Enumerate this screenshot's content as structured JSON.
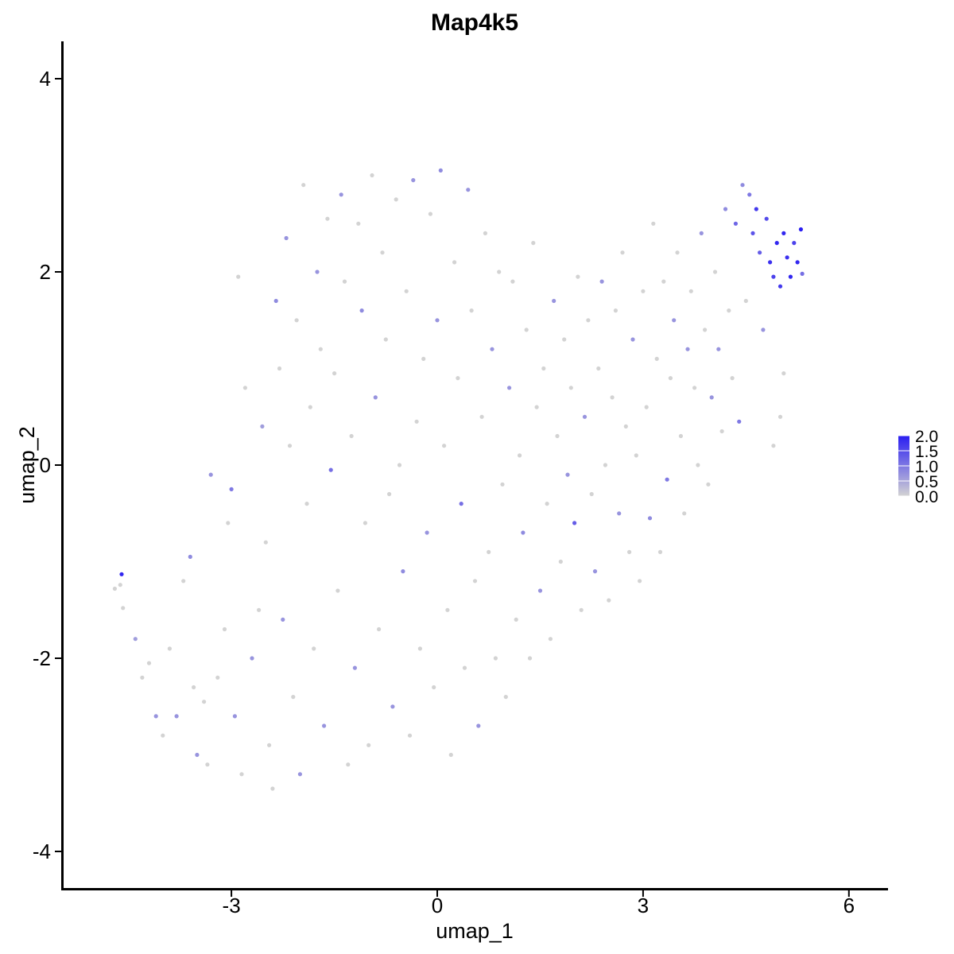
{
  "chart_data": {
    "type": "scatter",
    "title": "Map4k5",
    "xlabel": "umap_1",
    "ylabel": "umap_2",
    "xlim": [
      -5.5,
      6.5
    ],
    "ylim": [
      -4.4,
      4.4
    ],
    "x_ticks": [
      -3,
      0,
      3,
      6
    ],
    "x_tick_labels": [
      "-3",
      "0",
      "3",
      "6"
    ],
    "y_ticks": [
      -4,
      -2,
      0,
      2,
      4
    ],
    "y_tick_labels": [
      "-4",
      "-2",
      "0",
      "2",
      "4"
    ],
    "grid": false,
    "legend": {
      "placement": "right",
      "type": "colorbar",
      "range": [
        0,
        2.0
      ],
      "ticks": [
        0,
        0.5,
        1.0,
        1.5,
        2.0
      ],
      "tick_labels": [
        "0.0",
        "0.5",
        "1.0",
        "1.5",
        "2.0"
      ],
      "low_color": "#d3d3d3",
      "high_color": "#2a1ef2"
    },
    "points": [
      [
        -4.6,
        -1.13,
        1.9
      ],
      [
        -4.7,
        -1.28,
        0.0
      ],
      [
        -4.62,
        -1.24,
        0.0
      ],
      [
        -4.58,
        -1.48,
        0.0
      ],
      [
        -4.4,
        -1.8,
        0.6
      ],
      [
        -4.3,
        -2.2,
        0.0
      ],
      [
        -4.2,
        -2.05,
        0.0
      ],
      [
        -4.1,
        -2.6,
        0.7
      ],
      [
        -4.0,
        -2.8,
        0.0
      ],
      [
        -3.9,
        -1.9,
        0.0
      ],
      [
        -3.8,
        -2.6,
        0.7
      ],
      [
        -3.7,
        -1.2,
        0.0
      ],
      [
        -3.6,
        -0.95,
        0.8
      ],
      [
        -3.55,
        -2.3,
        0.0
      ],
      [
        -3.5,
        -3.0,
        0.7
      ],
      [
        -3.4,
        -2.45,
        0.0
      ],
      [
        -3.35,
        -3.1,
        0.0
      ],
      [
        -3.3,
        -0.1,
        0.7
      ],
      [
        -3.2,
        -2.2,
        0.0
      ],
      [
        -3.1,
        -1.7,
        0.0
      ],
      [
        -3.05,
        -0.6,
        0.0
      ],
      [
        -3.0,
        -0.25,
        1.0
      ],
      [
        -2.95,
        -2.6,
        0.7
      ],
      [
        -2.9,
        1.95,
        0.0
      ],
      [
        -2.85,
        -3.2,
        0.0
      ],
      [
        -2.8,
        0.8,
        0.0
      ],
      [
        -2.7,
        -2.0,
        0.7
      ],
      [
        -2.6,
        -1.5,
        0.0
      ],
      [
        -2.55,
        0.4,
        0.6
      ],
      [
        -2.5,
        -0.8,
        0.0
      ],
      [
        -2.45,
        -2.9,
        0.0
      ],
      [
        -2.4,
        -3.35,
        0.0
      ],
      [
        -2.35,
        1.7,
        0.8
      ],
      [
        -2.3,
        1.0,
        0.0
      ],
      [
        -2.25,
        -1.6,
        0.7
      ],
      [
        -2.2,
        2.35,
        0.7
      ],
      [
        -2.15,
        0.2,
        0.0
      ],
      [
        -2.1,
        -2.4,
        0.0
      ],
      [
        -2.05,
        1.5,
        0.0
      ],
      [
        -2.0,
        -3.2,
        0.7
      ],
      [
        -1.95,
        2.9,
        0.0
      ],
      [
        -1.9,
        -0.4,
        0.0
      ],
      [
        -1.85,
        0.6,
        0.0
      ],
      [
        -1.8,
        -1.9,
        0.0
      ],
      [
        -1.75,
        2.0,
        0.7
      ],
      [
        -1.7,
        1.2,
        0.0
      ],
      [
        -1.65,
        -2.7,
        0.7
      ],
      [
        -1.6,
        2.55,
        0.0
      ],
      [
        -1.55,
        -0.05,
        1.1
      ],
      [
        -1.5,
        0.95,
        0.0
      ],
      [
        -1.45,
        -1.3,
        0.0
      ],
      [
        -1.4,
        2.8,
        0.7
      ],
      [
        -1.35,
        1.9,
        0.0
      ],
      [
        -1.3,
        -3.1,
        0.0
      ],
      [
        -1.25,
        0.3,
        0.0
      ],
      [
        -1.2,
        -2.1,
        0.7
      ],
      [
        -1.15,
        2.5,
        0.0
      ],
      [
        -1.1,
        1.6,
        0.8
      ],
      [
        -1.05,
        -0.6,
        0.0
      ],
      [
        -1.0,
        -2.9,
        0.0
      ],
      [
        -0.95,
        3.0,
        0.0
      ],
      [
        -0.9,
        0.7,
        0.7
      ],
      [
        -0.85,
        -1.7,
        0.0
      ],
      [
        -0.8,
        2.2,
        0.0
      ],
      [
        -0.75,
        1.3,
        0.0
      ],
      [
        -0.7,
        -0.3,
        0.0
      ],
      [
        -0.65,
        -2.5,
        0.7
      ],
      [
        -0.6,
        2.75,
        0.0
      ],
      [
        -0.55,
        0.0,
        0.0
      ],
      [
        -0.5,
        -1.1,
        0.8
      ],
      [
        -0.45,
        1.8,
        0.0
      ],
      [
        -0.4,
        -2.8,
        0.0
      ],
      [
        -0.35,
        2.95,
        0.7
      ],
      [
        -0.3,
        0.45,
        0.0
      ],
      [
        -0.25,
        -1.9,
        0.0
      ],
      [
        -0.2,
        1.1,
        0.0
      ],
      [
        -0.15,
        -0.7,
        0.7
      ],
      [
        -0.1,
        2.6,
        0.0
      ],
      [
        -0.05,
        -2.3,
        0.0
      ],
      [
        0.0,
        1.5,
        0.7
      ],
      [
        0.05,
        3.05,
        0.8
      ],
      [
        0.1,
        0.2,
        0.0
      ],
      [
        0.15,
        -1.5,
        0.0
      ],
      [
        0.2,
        -3.0,
        0.0
      ],
      [
        0.25,
        2.1,
        0.0
      ],
      [
        0.3,
        0.9,
        0.0
      ],
      [
        0.35,
        -0.4,
        1.1
      ],
      [
        0.4,
        -2.1,
        0.0
      ],
      [
        0.45,
        2.85,
        0.7
      ],
      [
        0.5,
        1.6,
        0.0
      ],
      [
        0.55,
        -1.2,
        0.0
      ],
      [
        0.6,
        -2.7,
        0.7
      ],
      [
        0.65,
        0.5,
        0.0
      ],
      [
        0.7,
        2.4,
        0.0
      ],
      [
        0.75,
        -0.9,
        0.0
      ],
      [
        0.8,
        1.2,
        0.7
      ],
      [
        0.85,
        -2.0,
        0.0
      ],
      [
        0.9,
        2.0,
        0.0
      ],
      [
        0.95,
        -0.2,
        0.0
      ],
      [
        1.0,
        -2.4,
        0.0
      ],
      [
        1.05,
        0.8,
        0.7
      ],
      [
        1.1,
        1.9,
        0.0
      ],
      [
        1.15,
        -1.6,
        0.0
      ],
      [
        1.2,
        0.1,
        0.0
      ],
      [
        1.25,
        -0.7,
        0.8
      ],
      [
        1.3,
        1.4,
        0.0
      ],
      [
        1.35,
        -2.0,
        0.0
      ],
      [
        1.4,
        2.3,
        0.0
      ],
      [
        1.45,
        0.6,
        0.0
      ],
      [
        1.5,
        -1.3,
        0.7
      ],
      [
        1.55,
        1.0,
        0.0
      ],
      [
        1.6,
        -0.4,
        0.0
      ],
      [
        1.65,
        -1.8,
        0.0
      ],
      [
        1.7,
        1.7,
        0.7
      ],
      [
        1.75,
        0.3,
        0.0
      ],
      [
        1.8,
        -1.0,
        0.0
      ],
      [
        1.85,
        1.3,
        0.0
      ],
      [
        1.9,
        -0.1,
        0.7
      ],
      [
        1.95,
        0.8,
        0.0
      ],
      [
        2.0,
        -0.6,
        1.3
      ],
      [
        2.05,
        1.95,
        0.0
      ],
      [
        2.1,
        -1.5,
        0.0
      ],
      [
        2.15,
        0.5,
        0.7
      ],
      [
        2.2,
        1.5,
        0.0
      ],
      [
        2.25,
        -0.3,
        0.0
      ],
      [
        2.3,
        -1.1,
        0.7
      ],
      [
        2.35,
        1.0,
        0.0
      ],
      [
        2.4,
        1.9,
        0.7
      ],
      [
        2.45,
        0.0,
        0.0
      ],
      [
        2.5,
        -1.4,
        0.0
      ],
      [
        2.55,
        0.7,
        0.0
      ],
      [
        2.6,
        1.6,
        0.0
      ],
      [
        2.65,
        -0.5,
        0.7
      ],
      [
        2.7,
        2.2,
        0.0
      ],
      [
        2.75,
        0.4,
        0.0
      ],
      [
        2.8,
        -0.9,
        0.0
      ],
      [
        2.85,
        1.3,
        0.7
      ],
      [
        2.9,
        0.1,
        0.0
      ],
      [
        2.95,
        -1.2,
        0.0
      ],
      [
        3.0,
        1.8,
        0.0
      ],
      [
        3.05,
        0.6,
        0.0
      ],
      [
        3.1,
        -0.55,
        0.8
      ],
      [
        3.15,
        2.5,
        0.0
      ],
      [
        3.2,
        1.1,
        0.0
      ],
      [
        3.25,
        -0.9,
        0.0
      ],
      [
        3.3,
        1.9,
        0.0
      ],
      [
        3.35,
        -0.15,
        1.0
      ],
      [
        3.4,
        0.9,
        0.0
      ],
      [
        3.45,
        1.5,
        0.7
      ],
      [
        3.5,
        2.2,
        0.0
      ],
      [
        3.55,
        0.3,
        0.0
      ],
      [
        3.6,
        -0.5,
        0.0
      ],
      [
        3.65,
        1.2,
        0.7
      ],
      [
        3.7,
        1.8,
        0.0
      ],
      [
        3.75,
        0.8,
        0.0
      ],
      [
        3.8,
        0.0,
        0.0
      ],
      [
        3.85,
        2.4,
        0.7
      ],
      [
        3.9,
        1.4,
        0.0
      ],
      [
        3.95,
        -0.2,
        0.0
      ],
      [
        4.0,
        0.7,
        0.7
      ],
      [
        4.05,
        2.0,
        0.0
      ],
      [
        4.1,
        1.2,
        0.7
      ],
      [
        4.15,
        0.35,
        0.0
      ],
      [
        4.2,
        2.65,
        0.8
      ],
      [
        4.25,
        1.6,
        0.0
      ],
      [
        4.3,
        0.9,
        0.0
      ],
      [
        4.35,
        2.5,
        1.2
      ],
      [
        4.4,
        0.45,
        1.0
      ],
      [
        4.45,
        2.9,
        0.8
      ],
      [
        4.5,
        1.7,
        0.0
      ],
      [
        4.55,
        2.8,
        1.0
      ],
      [
        4.6,
        2.4,
        1.4
      ],
      [
        4.65,
        2.65,
        1.7
      ],
      [
        4.7,
        2.2,
        1.3
      ],
      [
        4.75,
        1.4,
        0.7
      ],
      [
        4.8,
        2.55,
        1.5
      ],
      [
        4.85,
        2.1,
        1.8
      ],
      [
        4.9,
        1.95,
        1.6
      ],
      [
        4.95,
        2.3,
        1.9
      ],
      [
        5.0,
        1.85,
        1.7
      ],
      [
        5.05,
        2.4,
        1.9
      ],
      [
        5.1,
        2.15,
        1.8
      ],
      [
        5.15,
        1.95,
        1.9
      ],
      [
        5.2,
        2.3,
        1.6
      ],
      [
        5.25,
        2.1,
        1.9
      ],
      [
        5.3,
        2.44,
        2.0
      ],
      [
        5.32,
        1.98,
        1.1
      ],
      [
        5.05,
        0.95,
        0.0
      ],
      [
        5.0,
        0.5,
        0.0
      ],
      [
        4.9,
        0.2,
        0.0
      ]
    ]
  }
}
